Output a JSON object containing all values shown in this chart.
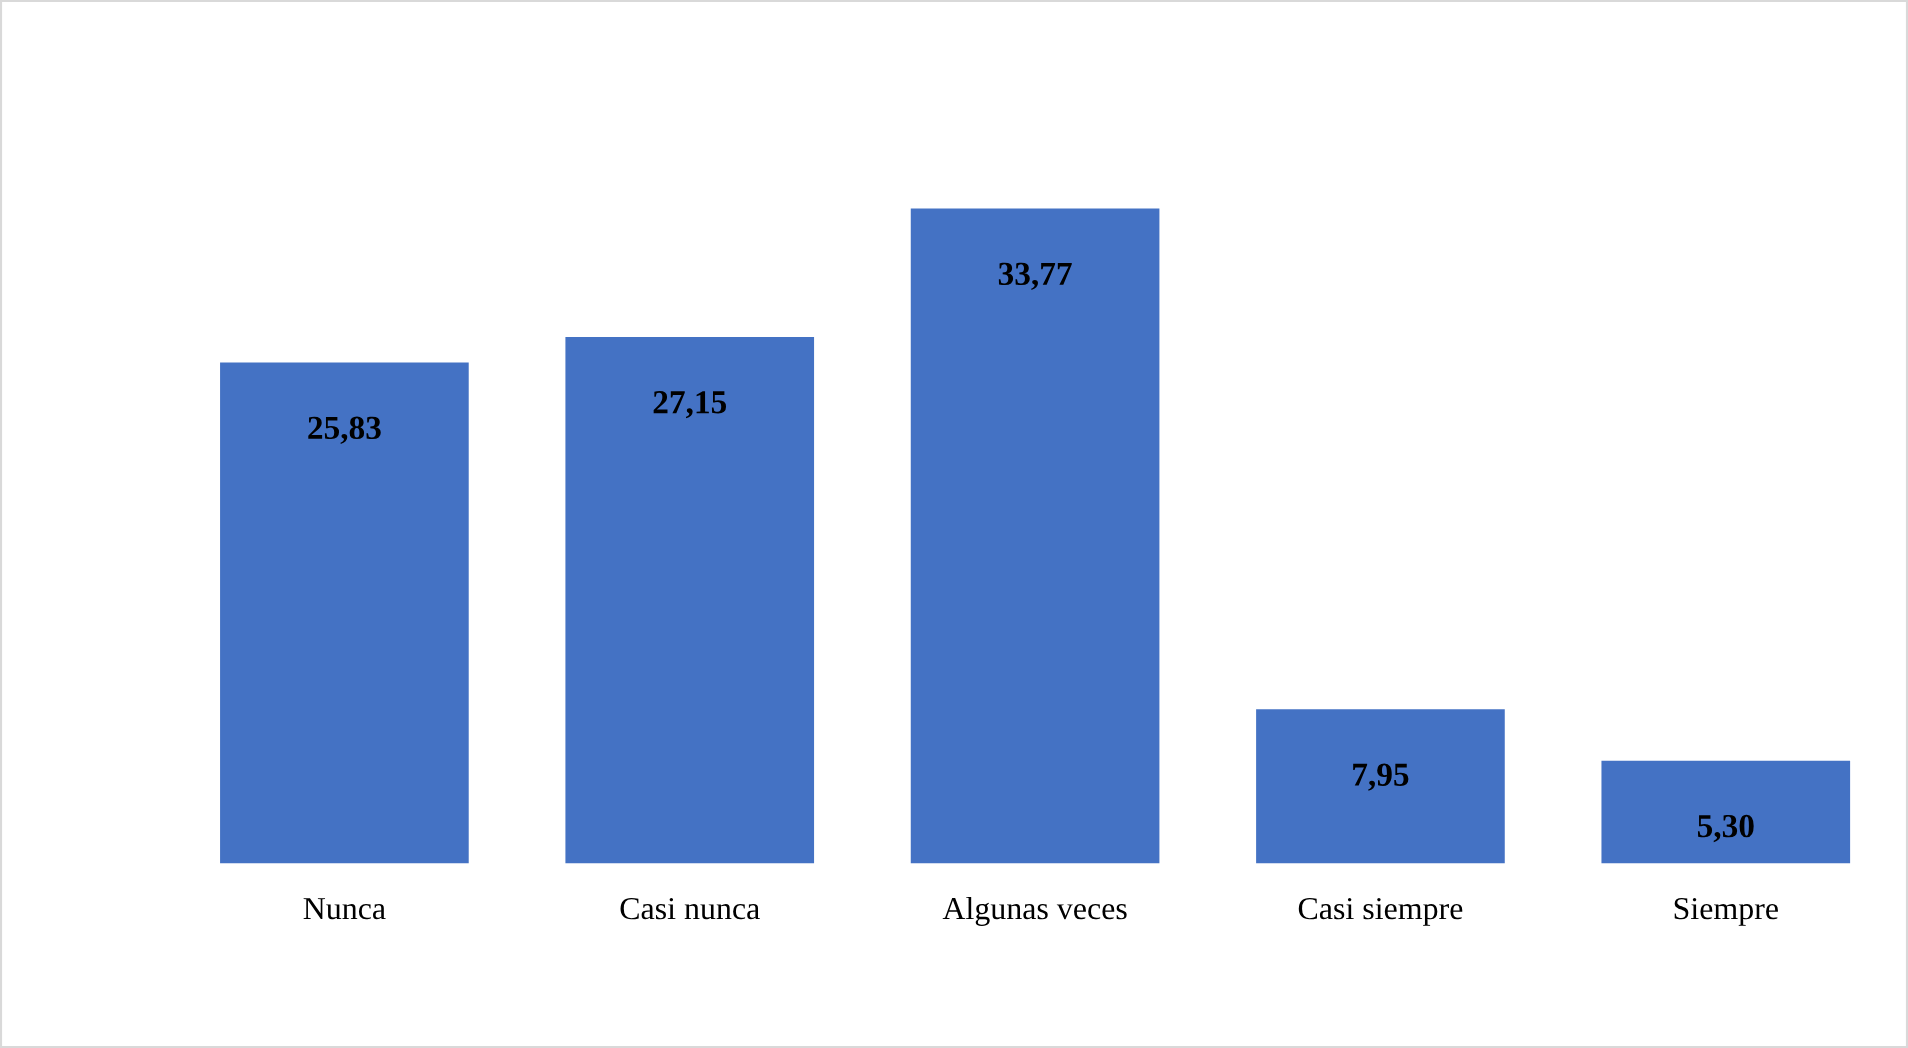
{
  "chart_data": {
    "type": "bar",
    "categories": [
      "Nunca",
      "Casi nunca",
      "Algunas veces",
      "Casi siempre",
      "Siempre"
    ],
    "values": [
      25.83,
      27.15,
      33.77,
      7.95,
      5.3
    ],
    "value_labels": [
      "25,83",
      "27,15",
      "33,77",
      "7,95",
      "5,30"
    ],
    "color": "#4472c4",
    "grid": false,
    "legend": false
  }
}
